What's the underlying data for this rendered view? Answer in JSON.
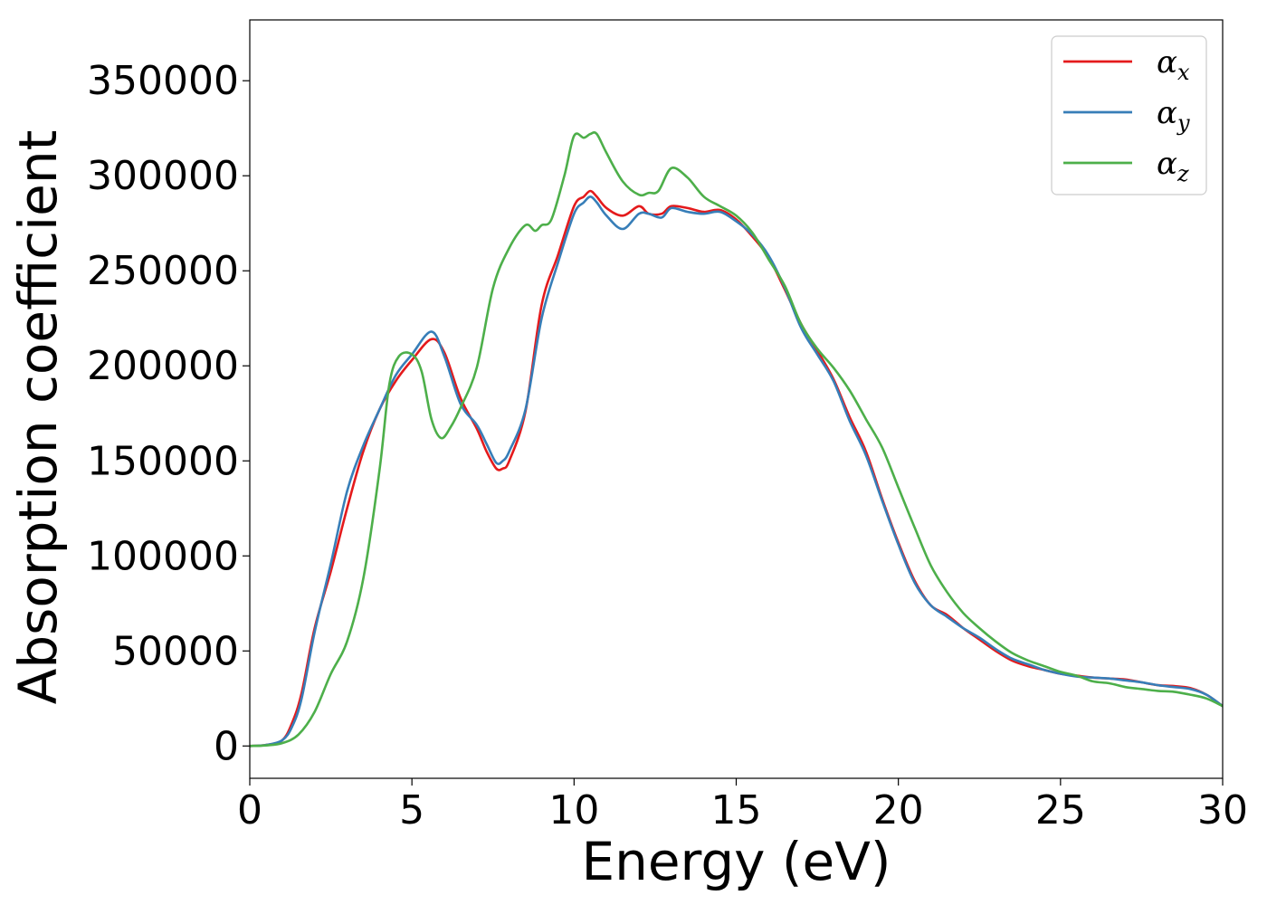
{
  "chart_data": {
    "type": "line",
    "xlabel": "Energy (eV)",
    "ylabel": "Absorption coefficient",
    "xlim": [
      0,
      30
    ],
    "ylim": [
      -17000,
      382000
    ],
    "xticks": [
      0,
      5,
      10,
      15,
      20,
      25,
      30
    ],
    "yticks": [
      0,
      50000,
      100000,
      150000,
      200000,
      250000,
      300000,
      350000
    ],
    "grid": false,
    "legend_position": "top-right",
    "series": [
      {
        "name": "α",
        "subscript": "x",
        "color": "#e41a1c",
        "x": [
          0,
          0.5,
          1,
          1.3,
          1.6,
          2,
          2.5,
          3,
          3.5,
          4,
          4.5,
          5,
          5.6,
          6,
          6.5,
          7,
          7.3,
          7.6,
          7.8,
          8,
          8.5,
          9,
          9.5,
          10,
          10.3,
          10.5,
          10.7,
          11,
          11.5,
          12,
          12.3,
          12.7,
          13,
          13.5,
          14,
          14.5,
          15,
          15.5,
          16,
          16.5,
          17,
          17.5,
          18,
          18.5,
          19,
          19.5,
          20,
          20.5,
          21,
          21.5,
          22,
          22.5,
          23,
          23.5,
          24,
          24.5,
          25,
          25.5,
          26,
          26.5,
          27,
          27.5,
          28,
          28.5,
          29,
          29.5,
          30
        ],
        "y": [
          0,
          500,
          3000,
          12000,
          28000,
          62000,
          92000,
          125000,
          155000,
          177000,
          192000,
          203000,
          214000,
          207000,
          183000,
          167000,
          155000,
          146000,
          146000,
          150000,
          176000,
          232000,
          258000,
          284000,
          289000,
          292000,
          289000,
          283000,
          279000,
          284000,
          280000,
          280000,
          284000,
          283000,
          281000,
          282000,
          277000,
          268000,
          257000,
          240000,
          222000,
          208000,
          193000,
          173000,
          155000,
          130000,
          107000,
          87000,
          74000,
          69000,
          62000,
          56000,
          50000,
          45000,
          42000,
          40000,
          38000,
          37000,
          36000,
          35500,
          35000,
          33500,
          32000,
          31500,
          30500,
          27000,
          21000
        ]
      },
      {
        "name": "α",
        "subscript": "y",
        "color": "#377eb8",
        "x": [
          0,
          0.5,
          1,
          1.3,
          1.6,
          2,
          2.5,
          3,
          3.5,
          4,
          4.5,
          5,
          5.6,
          6,
          6.5,
          7,
          7.3,
          7.6,
          7.8,
          8,
          8.5,
          9,
          9.5,
          10,
          10.3,
          10.5,
          10.7,
          11,
          11.5,
          12,
          12.3,
          12.7,
          13,
          13.5,
          14,
          14.5,
          15,
          15.5,
          16,
          16.5,
          17,
          17.5,
          18,
          18.5,
          19,
          19.5,
          20,
          20.5,
          21,
          21.5,
          22,
          22.5,
          23,
          23.5,
          24,
          24.5,
          25,
          25.5,
          26,
          26.5,
          27,
          27.5,
          28,
          28.5,
          29,
          29.5,
          30
        ],
        "y": [
          0,
          500,
          3000,
          10000,
          25000,
          60000,
          96000,
          134000,
          158000,
          177000,
          195000,
          206000,
          218000,
          205000,
          180000,
          169000,
          159000,
          149000,
          150000,
          155000,
          177000,
          225000,
          254000,
          280000,
          286000,
          289000,
          286000,
          279000,
          272000,
          280000,
          280000,
          278000,
          283000,
          281000,
          280000,
          281000,
          276000,
          269000,
          258000,
          241000,
          220000,
          206000,
          192000,
          171000,
          153000,
          129000,
          106000,
          86000,
          74000,
          68000,
          62000,
          57000,
          51000,
          46000,
          43000,
          40000,
          38000,
          36500,
          36000,
          35500,
          34500,
          33500,
          32000,
          31000,
          30000,
          27000,
          21000
        ]
      },
      {
        "name": "α",
        "subscript": "z",
        "color": "#4daf4a",
        "x": [
          0,
          0.5,
          1,
          1.5,
          2,
          2.5,
          3,
          3.5,
          4,
          4.3,
          4.6,
          5,
          5.3,
          5.6,
          5.9,
          6.2,
          6.5,
          7,
          7.5,
          8,
          8.5,
          8.8,
          9,
          9.3,
          9.7,
          10,
          10.3,
          10.5,
          10.7,
          11,
          11.5,
          12,
          12.3,
          12.6,
          13,
          13.5,
          14,
          14.5,
          15,
          15.5,
          16,
          16.5,
          17,
          17.5,
          18,
          18.5,
          19,
          19.5,
          20,
          20.5,
          21,
          21.5,
          22,
          22.5,
          23,
          23.5,
          24,
          24.5,
          25,
          25.5,
          26,
          26.5,
          27,
          27.5,
          28,
          28.5,
          29,
          29.5,
          30
        ],
        "y": [
          0,
          300,
          1500,
          6000,
          18000,
          38000,
          55000,
          88000,
          145000,
          190000,
          205000,
          206000,
          197000,
          172000,
          162000,
          168000,
          178000,
          199000,
          241000,
          262000,
          274000,
          271000,
          274000,
          277000,
          300000,
          321000,
          320000,
          322000,
          322000,
          312000,
          297000,
          290000,
          291000,
          292000,
          304000,
          299000,
          289000,
          284000,
          279000,
          270000,
          256000,
          242000,
          222000,
          209000,
          199000,
          187000,
          172000,
          157000,
          136000,
          115000,
          95000,
          81000,
          70000,
          62000,
          55000,
          49000,
          45000,
          42000,
          39000,
          37000,
          34000,
          33000,
          31000,
          30000,
          29000,
          28500,
          27000,
          25000,
          21000
        ]
      }
    ]
  }
}
